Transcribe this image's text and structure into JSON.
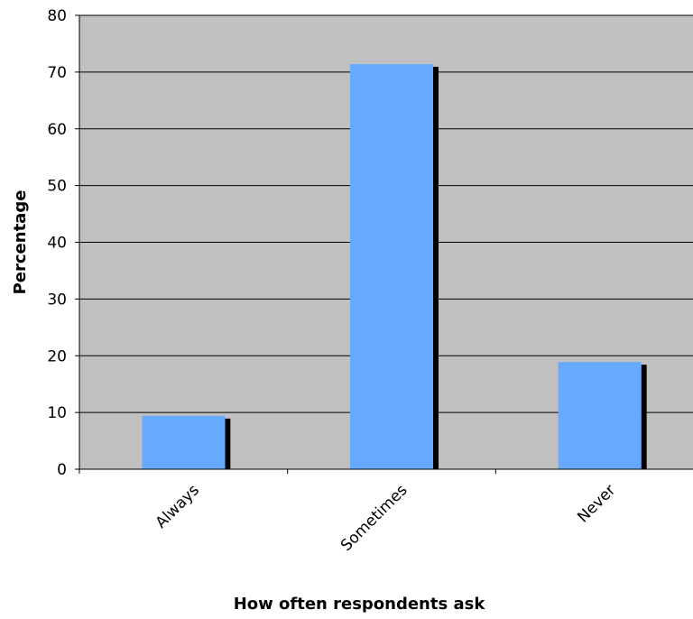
{
  "chart_data": {
    "type": "bar",
    "title": "",
    "xlabel": "How often respondents ask",
    "ylabel": "Percentage",
    "categories": [
      "Always",
      "Sometimes",
      "Never"
    ],
    "values": [
      9.4,
      71.4,
      18.9
    ],
    "ylim": [
      0,
      80
    ],
    "yticks": [
      0,
      10,
      20,
      30,
      40,
      50,
      60,
      70,
      80
    ],
    "grid": true,
    "legend": "none",
    "colors": {
      "plot_background": "#c0c0c0",
      "bar_fill": "#66aaff",
      "bar_shadow": "#000000",
      "gridline": "#000000"
    }
  }
}
